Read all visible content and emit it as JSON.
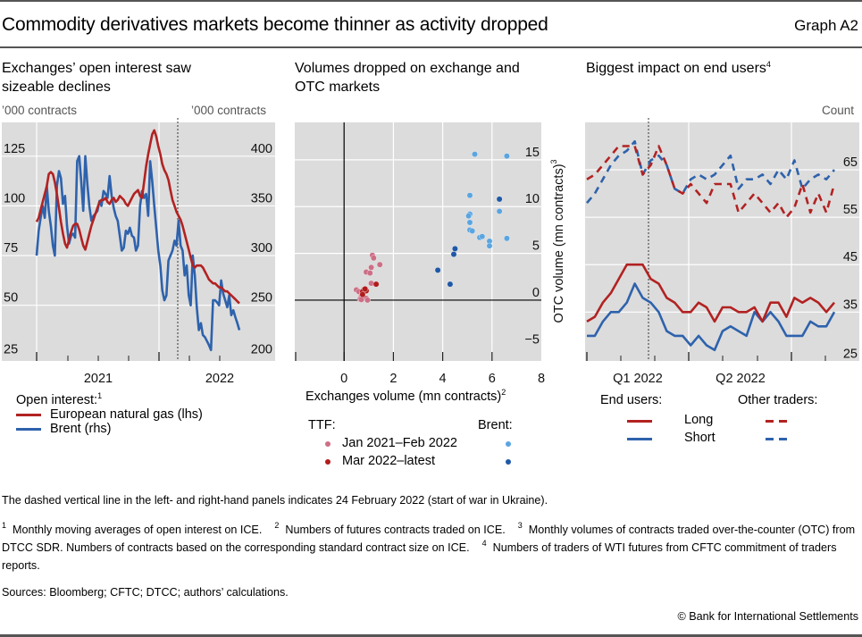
{
  "header": {
    "title": "Commodity derivatives markets become thinner as activity dropped",
    "graph_id": "Graph A2"
  },
  "panels": {
    "left": {
      "title_line1": "Exchanges’ open interest saw",
      "title_line2": "sizeable declines",
      "unit_left": "’000 contracts",
      "unit_right": "’000 contracts",
      "legend_heading": "Open interest:",
      "legend_heading_note": "1",
      "legend": [
        "European natural gas (lhs)",
        "Brent (rhs)"
      ]
    },
    "middle": {
      "title_line1": "Volumes dropped on exchange and",
      "title_line2": "OTC markets",
      "xlabel": "Exchanges volume (mn contracts)",
      "xlabel_note": "2",
      "ylabel": "OTC volume (mn contracts)",
      "ylabel_note": "3",
      "legend_ttf": "TTF:",
      "legend_brent": "Brent:",
      "legend_rows": [
        "Jan 2021–Feb 2022",
        "Mar 2022–latest"
      ]
    },
    "right": {
      "title": "Biggest impact on end users",
      "title_note": "4",
      "unit": "Count",
      "legend_end_users": "End users:",
      "legend_other": "Other traders:",
      "legend_rows": [
        "Long",
        "Short"
      ]
    }
  },
  "colors": {
    "red": "#b22222",
    "blue": "#2e62ac",
    "pink": "#cc6f86",
    "light_blue": "#5aa5e0",
    "dark_blue": "#1f58a6",
    "dark_red": "#b01c1c",
    "plot_bg": "#dcdcdc"
  },
  "chart_data": [
    {
      "type": "line",
      "title": "Exchanges’ open interest saw sizeable declines",
      "x_tick_labels": [
        "2021",
        "2022"
      ],
      "x_range": [
        "2020-10",
        "2022-07"
      ],
      "ylabel_left": "’000 contracts",
      "ylabel_right": "’000 contracts",
      "ylim_left": [
        22,
        142
      ],
      "ylim_right": [
        194,
        434
      ],
      "yticks_left": [
        25,
        50,
        75,
        100,
        125
      ],
      "yticks_right": [
        200,
        250,
        300,
        350,
        400
      ],
      "vline": "2022-02-24",
      "grid": true,
      "series": [
        {
          "name": "European natural gas (lhs)",
          "axis": "left",
          "t": [
            0,
            0.01,
            0.02,
            0.03,
            0.04,
            0.05,
            0.06,
            0.07,
            0.08,
            0.09,
            0.1,
            0.11,
            0.12,
            0.13,
            0.14,
            0.15,
            0.16,
            0.17,
            0.18,
            0.19,
            0.2,
            0.21,
            0.22,
            0.23,
            0.24,
            0.25,
            0.26,
            0.27,
            0.28,
            0.29,
            0.3,
            0.31,
            0.32,
            0.33,
            0.34,
            0.35,
            0.36,
            0.37,
            0.38,
            0.39,
            0.4,
            0.41,
            0.42,
            0.43,
            0.44,
            0.45,
            0.46,
            0.47,
            0.48,
            0.49,
            0.5,
            0.51,
            0.52,
            0.53,
            0.54,
            0.55,
            0.56,
            0.57,
            0.58,
            0.59,
            0.6,
            0.61,
            0.62,
            0.63,
            0.64,
            0.65,
            0.66,
            0.67,
            0.68,
            0.69,
            0.7,
            0.71,
            0.72,
            0.73,
            0.74,
            0.75,
            0.76,
            0.77,
            0.78,
            0.79,
            0.8,
            0.81,
            0.82,
            0.83,
            0.84,
            0.85,
            0.86,
            0.87,
            0.88,
            0.89,
            0.9,
            0.91,
            0.92,
            0.93,
            0.94,
            0.95,
            0.96,
            0.97,
            0.98,
            0.99,
            1.0
          ],
          "values": [
            92,
            94,
            98,
            102,
            106,
            110,
            116,
            117,
            116,
            112,
            106,
            99,
            92,
            86,
            81,
            79,
            83,
            87,
            90,
            91,
            91,
            88,
            84,
            80,
            78,
            82,
            86,
            90,
            93,
            96,
            99,
            102,
            103,
            103,
            104,
            102,
            101,
            103,
            104,
            102,
            103,
            105,
            104,
            103,
            101,
            100,
            102,
            104,
            106,
            107,
            108,
            105,
            104,
            112,
            120,
            126,
            131,
            136,
            138,
            135,
            130,
            126,
            121,
            118,
            116,
            113,
            108,
            103,
            100,
            97,
            95,
            93,
            90,
            86,
            82,
            78,
            74,
            70,
            69,
            70,
            70,
            70,
            69,
            67,
            65,
            63,
            62,
            61,
            61,
            60,
            59,
            59,
            58,
            57,
            57,
            56,
            55,
            54,
            53,
            52,
            51
          ]
        },
        {
          "name": "Brent (rhs)",
          "axis": "right",
          "t": [
            0,
            0.01,
            0.02,
            0.03,
            0.04,
            0.05,
            0.06,
            0.07,
            0.08,
            0.09,
            0.1,
            0.11,
            0.12,
            0.13,
            0.14,
            0.15,
            0.16,
            0.17,
            0.18,
            0.19,
            0.2,
            0.21,
            0.22,
            0.23,
            0.24,
            0.25,
            0.26,
            0.27,
            0.28,
            0.29,
            0.3,
            0.31,
            0.32,
            0.33,
            0.34,
            0.35,
            0.36,
            0.37,
            0.38,
            0.39,
            0.4,
            0.41,
            0.42,
            0.43,
            0.44,
            0.45,
            0.46,
            0.47,
            0.48,
            0.49,
            0.5,
            0.51,
            0.52,
            0.53,
            0.54,
            0.55,
            0.56,
            0.57,
            0.58,
            0.59,
            0.6,
            0.61,
            0.62,
            0.63,
            0.64,
            0.65,
            0.66,
            0.67,
            0.68,
            0.69,
            0.7,
            0.71,
            0.72,
            0.73,
            0.74,
            0.75,
            0.76,
            0.77,
            0.78,
            0.79,
            0.8,
            0.81,
            0.82,
            0.83,
            0.84,
            0.85,
            0.86,
            0.87,
            0.88,
            0.89,
            0.9,
            0.91,
            0.92,
            0.93,
            0.94,
            0.95,
            0.96,
            0.97,
            0.98,
            0.99,
            1.0
          ],
          "values": [
            300,
            325,
            338,
            350,
            338,
            370,
            345,
            330,
            310,
            300,
            370,
            385,
            378,
            352,
            360,
            330,
            312,
            320,
            322,
            318,
            395,
            400,
            375,
            345,
            400,
            372,
            350,
            335,
            340,
            342,
            345,
            355,
            350,
            365,
            362,
            358,
            380,
            360,
            348,
            340,
            335,
            320,
            305,
            308,
            325,
            322,
            328,
            320,
            318,
            305,
            310,
            350,
            365,
            358,
            362,
            340,
            395,
            375,
            350,
            328,
            305,
            290,
            265,
            255,
            260,
            295,
            300,
            305,
            315,
            310,
            335,
            310,
            305,
            280,
            290,
            260,
            250,
            300,
            280,
            248,
            225,
            232,
            220,
            218,
            214,
            210,
            205,
            255,
            255,
            253,
            250,
            275,
            262,
            255,
            248,
            260,
            240,
            245,
            238,
            232,
            225
          ]
        }
      ]
    },
    {
      "type": "scatter",
      "title": "Volumes dropped on exchange and OTC markets",
      "xlabel": "Exchanges volume (mn contracts)",
      "ylabel": "OTC volume (mn contracts)",
      "xlim": [
        -2,
        8
      ],
      "ylim": [
        -6.5,
        19
      ],
      "xticks": [
        0,
        2,
        4,
        6,
        8
      ],
      "yticks": [
        -5,
        0,
        5,
        10,
        15
      ],
      "grid": true,
      "series": [
        {
          "name": "TTF Jan 2021–Feb 2022",
          "points": [
            [
              1.15,
              4.8
            ],
            [
              1.2,
              4.5
            ],
            [
              1.45,
              3.8
            ],
            [
              1.1,
              3.5
            ],
            [
              0.9,
              3.0
            ],
            [
              1.05,
              2.9
            ],
            [
              1.1,
              1.8
            ],
            [
              0.5,
              1.1
            ],
            [
              0.6,
              0.9
            ],
            [
              0.75,
              0.7
            ],
            [
              0.7,
              0.4
            ],
            [
              0.9,
              0.2
            ],
            [
              0.65,
              0.1
            ],
            [
              0.95,
              0.0
            ],
            [
              0.7,
              0.05
            ]
          ]
        },
        {
          "name": "TTF Mar 2022–latest",
          "points": [
            [
              1.3,
              1.7
            ],
            [
              0.8,
              1.1
            ],
            [
              0.9,
              1.0
            ],
            [
              0.75,
              0.9
            ],
            [
              0.75,
              0.6
            ],
            [
              0.85,
              1.2
            ]
          ]
        },
        {
          "name": "Brent Jan 2021–Feb 2022",
          "points": [
            [
              5.3,
              15.6
            ],
            [
              6.6,
              15.4
            ],
            [
              5.1,
              11.2
            ],
            [
              6.3,
              9.5
            ],
            [
              5.1,
              9.2
            ],
            [
              5.05,
              9.0
            ],
            [
              5.1,
              8.3
            ],
            [
              5.1,
              7.5
            ],
            [
              5.2,
              7.4
            ],
            [
              5.5,
              6.7
            ],
            [
              5.6,
              6.8
            ],
            [
              5.9,
              6.3
            ],
            [
              6.6,
              6.6
            ],
            [
              5.9,
              5.8
            ]
          ]
        },
        {
          "name": "Brent Mar 2022–latest",
          "points": [
            [
              6.3,
              10.8
            ],
            [
              4.5,
              5.5
            ],
            [
              4.45,
              4.9
            ],
            [
              3.8,
              3.2
            ],
            [
              4.3,
              1.7
            ]
          ]
        }
      ]
    },
    {
      "type": "line",
      "title": "Biggest impact on end users",
      "ylabel": "Count",
      "x_tick_labels": [
        "Q1 2022",
        "Q2 2022"
      ],
      "ylim": [
        24.7,
        75
      ],
      "yticks": [
        25,
        35,
        45,
        55,
        65
      ],
      "vline": "2022-02-24",
      "grid": true,
      "series": [
        {
          "name": "End users Long",
          "style": "solid",
          "color": "red",
          "values": [
            33,
            34,
            37,
            39,
            42,
            45,
            45,
            45,
            42,
            41,
            38,
            37,
            35,
            35,
            37,
            36,
            33,
            36,
            36,
            35,
            35,
            36,
            33,
            37,
            37,
            34,
            38,
            37,
            38,
            37,
            35,
            37
          ]
        },
        {
          "name": "End users Short",
          "style": "solid",
          "color": "blue",
          "values": [
            30,
            30,
            33,
            35,
            35,
            37,
            41,
            38,
            37,
            35,
            31,
            30,
            30,
            28,
            30,
            28,
            27,
            31,
            32,
            31,
            30,
            35,
            33,
            35,
            33,
            30,
            30,
            30,
            33,
            32,
            32,
            35
          ]
        },
        {
          "name": "Other traders Long",
          "style": "dashed",
          "color": "red",
          "values": [
            63,
            64,
            66,
            68,
            70,
            70,
            70,
            64,
            66,
            70,
            66,
            61,
            60,
            62,
            60,
            58,
            62,
            62,
            62,
            56,
            58,
            60,
            58,
            56,
            58,
            55,
            57,
            62,
            56,
            60,
            56,
            62
          ]
        },
        {
          "name": "Other traders Short",
          "style": "dashed",
          "color": "blue",
          "values": [
            58,
            60,
            63,
            66,
            68,
            69,
            71,
            64,
            67,
            68,
            66,
            61,
            60,
            63,
            64,
            63,
            64,
            66,
            68,
            61,
            63,
            63,
            64,
            62,
            65,
            63,
            67,
            61,
            63,
            64,
            63,
            65
          ]
        }
      ]
    }
  ],
  "footnotes": {
    "note_line": "The dashed vertical line in the left- and right-hand panels indicates 24 February 2022 (start of war in Ukraine).",
    "fn1_num": "1",
    "fn1": "Monthly moving averages of open interest on ICE.",
    "fn2_num": "2",
    "fn2": "Numbers of futures contracts traded on ICE.",
    "fn3_num": "3",
    "fn3": "Monthly volumes of contracts traded over-the-counter (OTC) from DTCC SDR. Numbers of contracts based on the corresponding standard contract size on ICE.",
    "fn4_num": "4",
    "fn4": "Numbers of traders of WTI futures from CFTC commitment of traders reports.",
    "sources": "Sources: Bloomberg; CFTC; DTCC; authors’ calculations.",
    "copyright": "© Bank for International Settlements"
  }
}
